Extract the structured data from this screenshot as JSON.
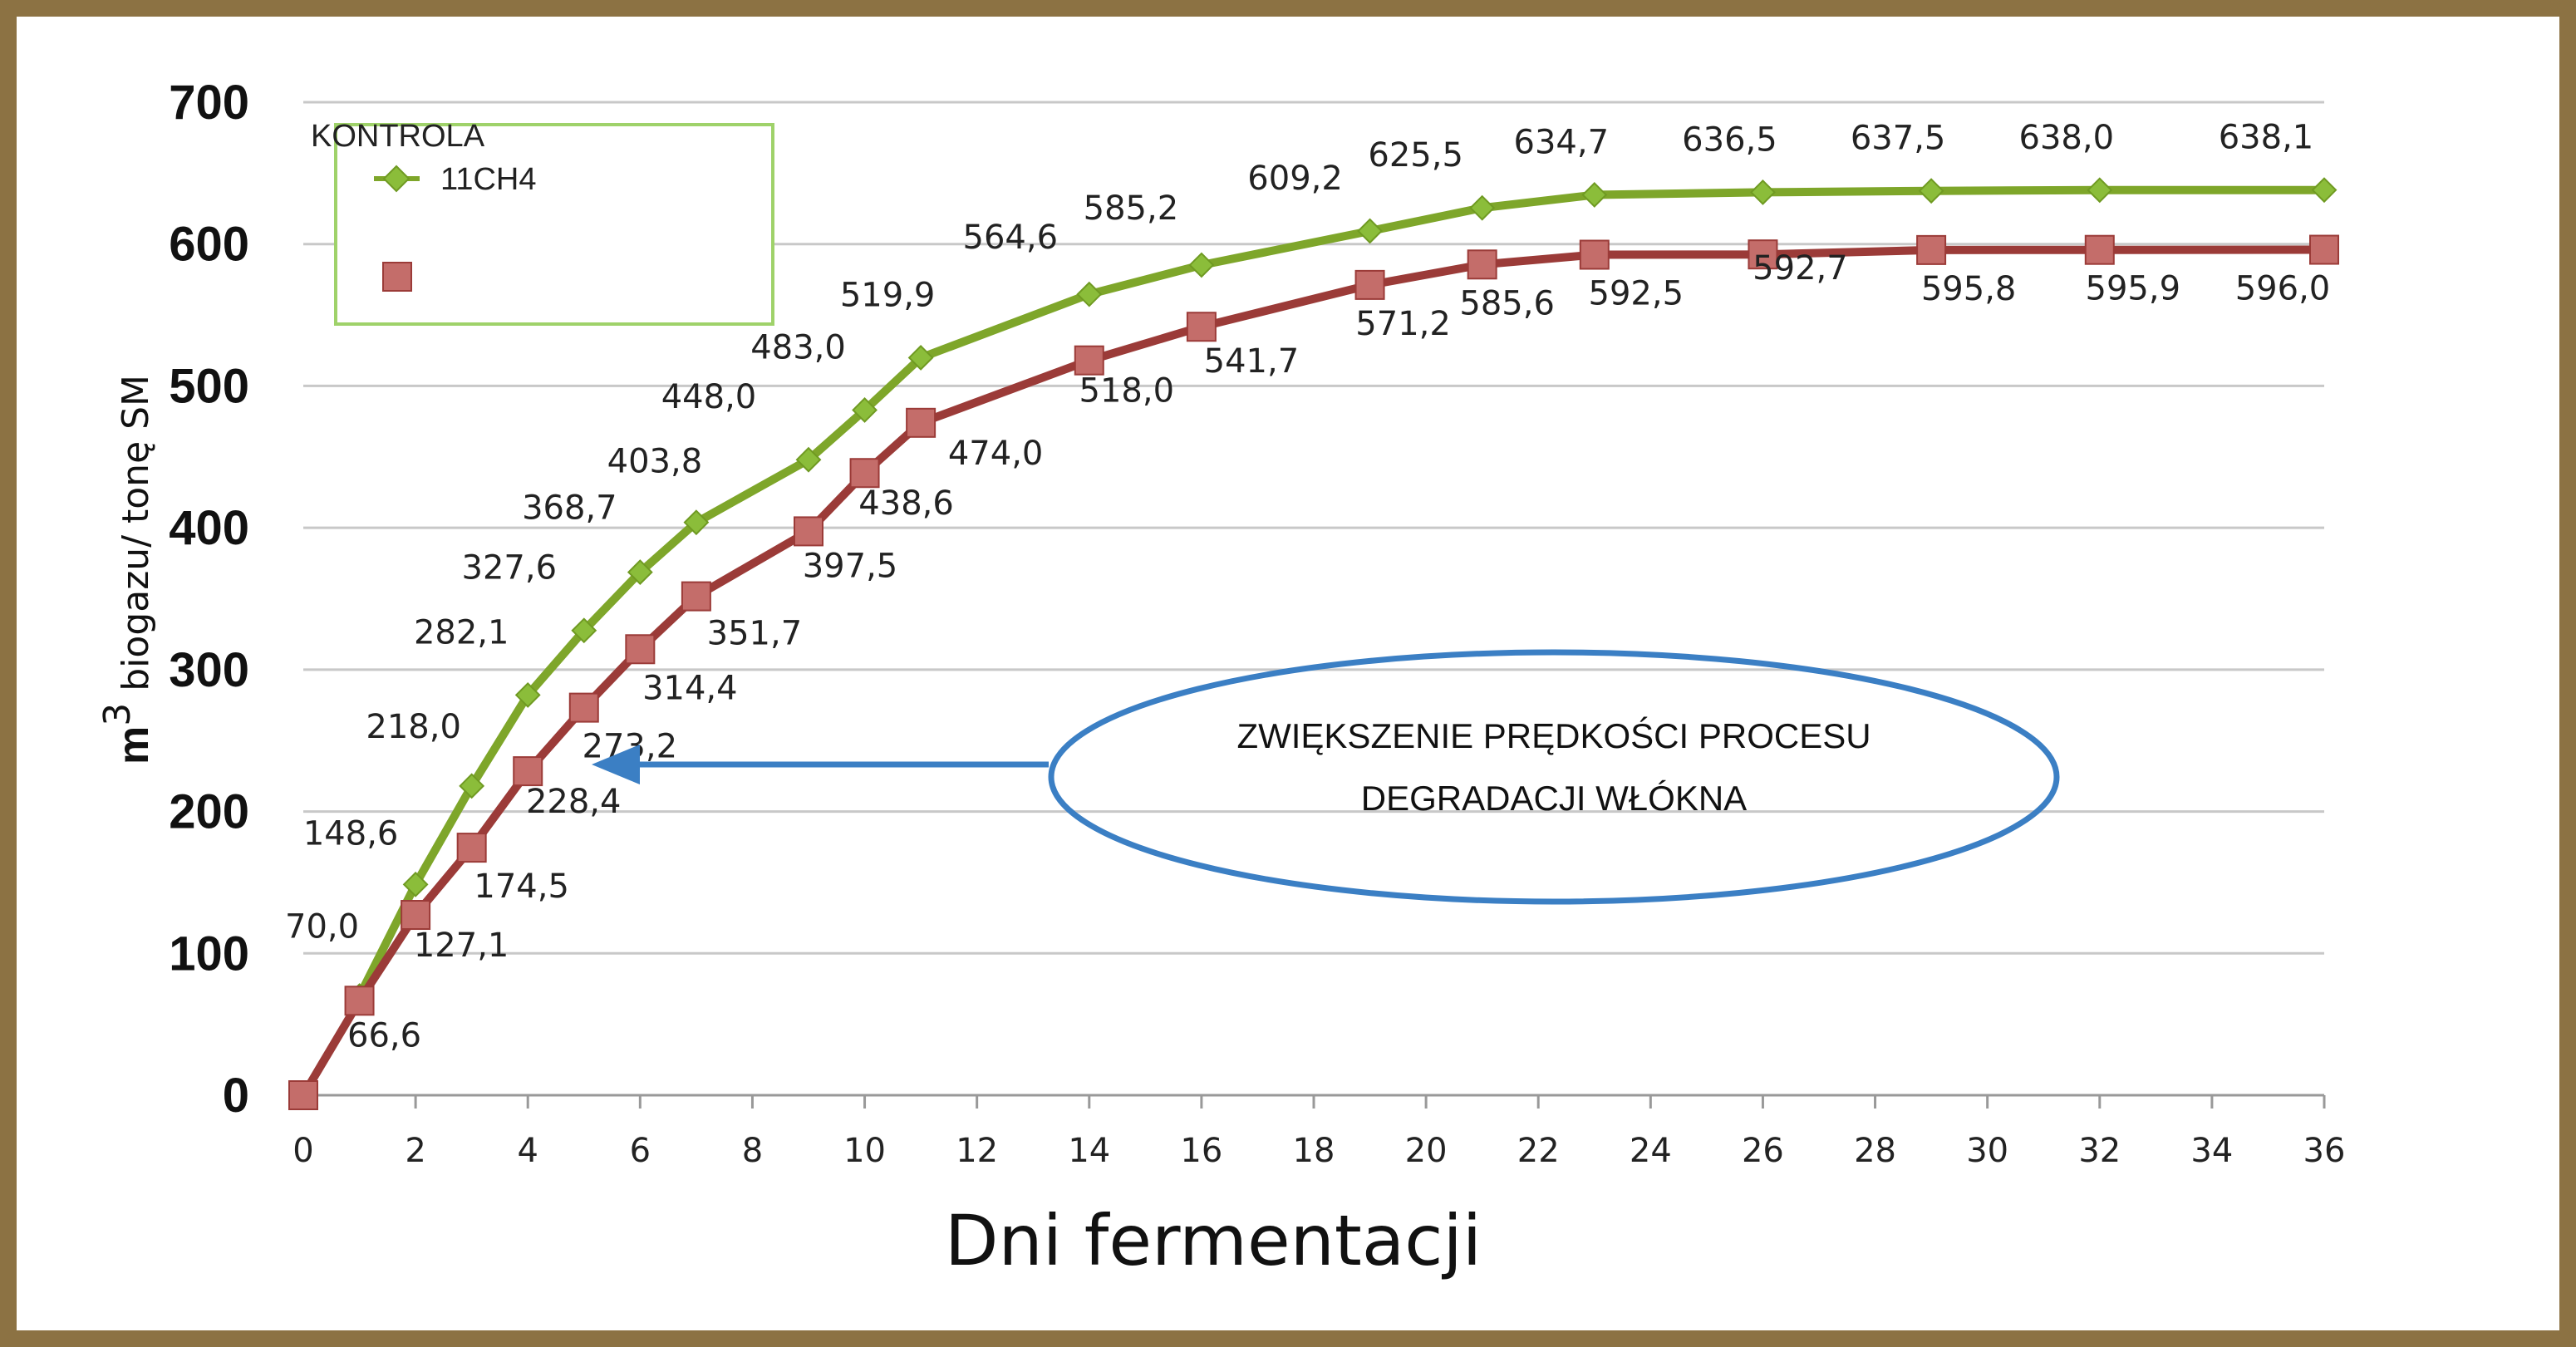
{
  "chart_data": {
    "type": "line",
    "xlabel": "Dni fermentacji",
    "ylabel_prefix": "m",
    "ylabel_sup": "3",
    "ylabel_rest": "biogazu/ tonę SM",
    "ylim": [
      0,
      700
    ],
    "xlim": [
      0,
      36
    ],
    "y_ticks": [
      "0",
      "100",
      "200",
      "300",
      "400",
      "500",
      "600",
      "700"
    ],
    "x_ticks": [
      "0",
      "2",
      "4",
      "6",
      "8",
      "10",
      "12",
      "14",
      "16",
      "18",
      "20",
      "22",
      "24",
      "26",
      "28",
      "30",
      "32",
      "34",
      "36"
    ],
    "grid": "horizontal",
    "legend_position": "top-left",
    "legend_title": "KONTROLA",
    "series": [
      {
        "name": "11CH4",
        "color": "#7ea62a",
        "marker": "diamond",
        "x": [
          1,
          2,
          3,
          4,
          5,
          6,
          7,
          9,
          10,
          11,
          14,
          16,
          19,
          21,
          23,
          26,
          29,
          32,
          36
        ],
        "values": [
          70.0,
          148.6,
          218.0,
          282.1,
          327.6,
          368.7,
          403.8,
          448.0,
          483.0,
          519.9,
          564.6,
          585.2,
          609.2,
          625.5,
          634.7,
          636.5,
          637.5,
          638.0,
          638.1
        ],
        "labels": [
          "70,0",
          "148,6",
          "218,0",
          "282,1",
          "327,6",
          "368,7",
          "403,8",
          "448,0",
          "483,0",
          "519,9",
          "564,6",
          "585,2",
          "609,2",
          "625,5",
          "634,7",
          "636,5",
          "637,5",
          "638,0",
          "638,1"
        ]
      },
      {
        "name": "",
        "color": "#9b3b38",
        "marker": "square",
        "x": [
          0,
          1,
          2,
          3,
          4,
          5,
          6,
          7,
          9,
          10,
          11,
          14,
          16,
          19,
          21,
          23,
          26,
          29,
          32,
          36
        ],
        "values": [
          0,
          66.6,
          127.1,
          174.5,
          228.4,
          273.2,
          314.4,
          351.7,
          397.5,
          438.6,
          474.0,
          518.0,
          541.7,
          571.2,
          585.6,
          592.5,
          592.7,
          595.8,
          595.9,
          596.0
        ],
        "labels": [
          "",
          "66,6",
          "127,1",
          "174,5",
          "228,4",
          "273,2",
          "314,4",
          "351,7",
          "397,5",
          "438,6",
          "474,0",
          "518,0",
          "541,7",
          "571,2",
          "585,6",
          "592,5",
          "592,7",
          "595,8",
          "595,9",
          "596,0"
        ]
      }
    ],
    "annotation": {
      "lines": [
        "ZWIĘKSZENIE PRĘDKOŚCI PROCESU",
        "DEGRADACJI WŁÓKNA"
      ],
      "ellipse_color": "#3b7fc4",
      "arrow_color": "#3b7fc4"
    }
  }
}
